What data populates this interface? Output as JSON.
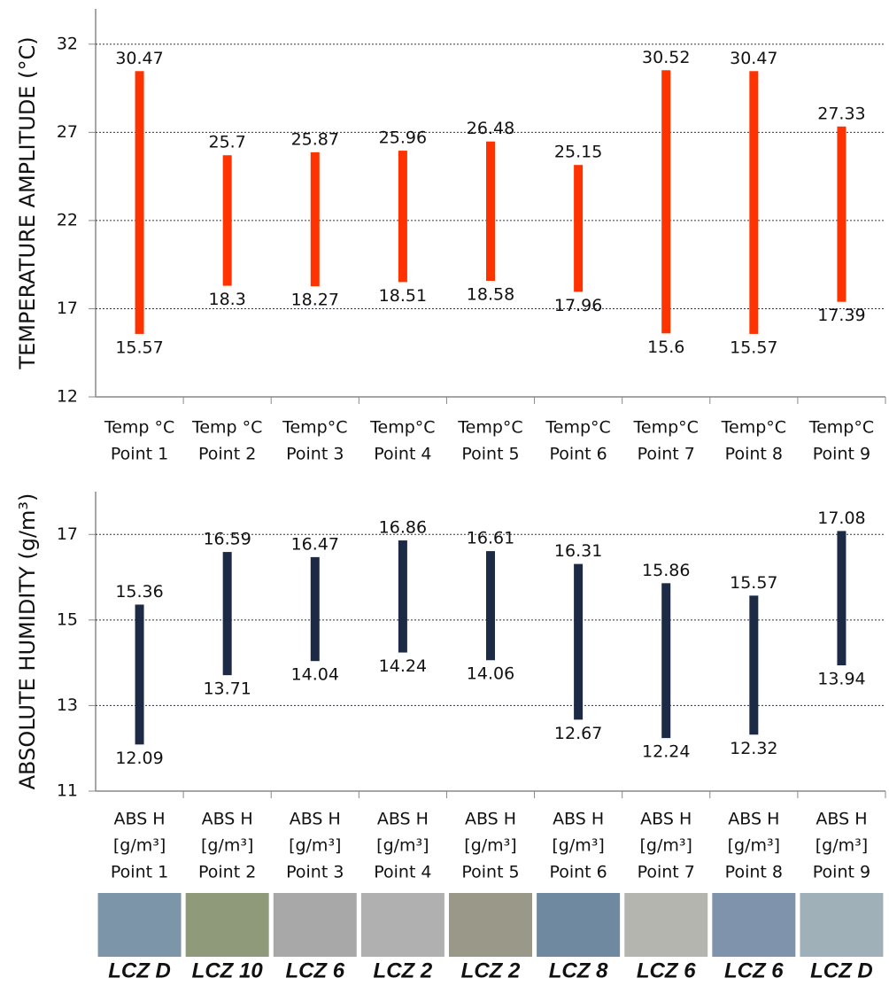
{
  "chart_data": [
    {
      "type": "range-bar",
      "y_label": "TEMPERATURE AMPLITUDE (°C)",
      "categories": [
        [
          "Temp °C",
          "Point 1"
        ],
        [
          "Temp °C",
          "Point 2"
        ],
        [
          "Temp°C",
          "Point 3"
        ],
        [
          "Temp°C",
          "Point 4"
        ],
        [
          "Temp°C",
          "Point 5"
        ],
        [
          "Temp°C",
          "Point 6"
        ],
        [
          "Temp°C",
          "Point 7"
        ],
        [
          "Temp°C",
          "Point 8"
        ],
        [
          "Temp°C",
          "Point 9"
        ]
      ],
      "series": [
        {
          "color": "#ff3300",
          "low": [
            15.57,
            18.3,
            18.27,
            18.51,
            18.58,
            17.96,
            15.6,
            15.57,
            17.39
          ],
          "high": [
            30.47,
            25.7,
            25.87,
            25.96,
            26.48,
            25.15,
            30.52,
            30.47,
            27.33
          ]
        }
      ],
      "ylim": [
        12,
        34
      ],
      "yticks": [
        12,
        17,
        22,
        27,
        32
      ],
      "grid": true
    },
    {
      "type": "range-bar",
      "y_label": "ABSOLUTE HUMIDITY (g/m³)",
      "categories": [
        [
          "ABS H",
          "[g/m³]",
          "Point 1"
        ],
        [
          "ABS H",
          "[g/m³]",
          "Point 2"
        ],
        [
          "ABS H",
          "[g/m³]",
          "Point 3"
        ],
        [
          "ABS H",
          "[g/m³]",
          "Point 4"
        ],
        [
          "ABS H",
          "[g/m³]",
          "Point 5"
        ],
        [
          "ABS H",
          "[g/m³]",
          "Point 6"
        ],
        [
          "ABS H",
          "[g/m³]",
          "Point 7"
        ],
        [
          "ABS H",
          "[g/m³]",
          "Point 8"
        ],
        [
          "ABS H",
          "[g/m³]",
          "Point 9"
        ]
      ],
      "series": [
        {
          "color": "#1c2a45",
          "low": [
            12.09,
            13.71,
            14.04,
            14.24,
            14.06,
            12.67,
            12.24,
            12.32,
            13.94
          ],
          "high": [
            15.36,
            16.59,
            16.47,
            16.86,
            16.61,
            16.31,
            15.86,
            15.57,
            17.08
          ]
        }
      ],
      "ylim": [
        11,
        18
      ],
      "yticks": [
        11,
        13,
        15,
        17
      ],
      "grid": true
    }
  ],
  "zones": [
    "LCZ D",
    "LCZ 10",
    "LCZ 6",
    "LCZ 2",
    "LCZ 2",
    "LCZ 8",
    "LCZ 6",
    "LCZ 6",
    "LCZ D"
  ]
}
